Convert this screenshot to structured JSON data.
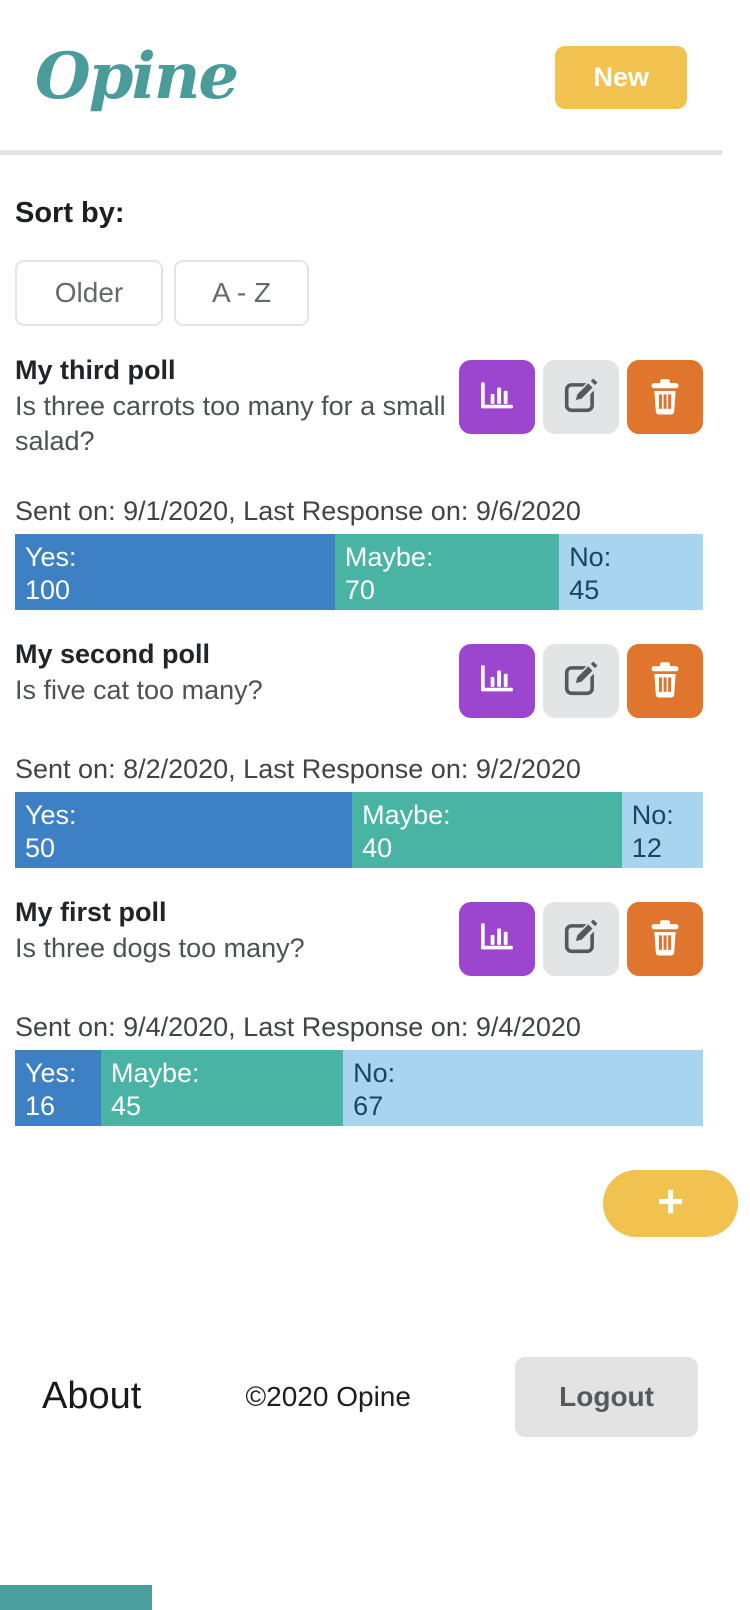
{
  "header": {
    "logo_text": "Opine",
    "new_button_label": "New"
  },
  "sort": {
    "label": "Sort by:",
    "buttons": [
      {
        "label": "Older"
      },
      {
        "label": "A - Z"
      }
    ]
  },
  "polls": [
    {
      "title": "My third poll",
      "question": "Is three carrots too many for a small salad?",
      "meta": "Sent on: 9/1/2020, Last Response on: 9/6/2020",
      "segments": [
        {
          "label": "Yes:",
          "value": "100",
          "pct": 46.5
        },
        {
          "label": "Maybe:",
          "value": "70",
          "pct": 32.6
        },
        {
          "label": "No:",
          "value": "45",
          "pct": 20.9
        }
      ]
    },
    {
      "title": "My second poll",
      "question": "Is five cat too many?",
      "meta": "Sent on: 8/2/2020, Last Response on: 9/2/2020",
      "segments": [
        {
          "label": "Yes:",
          "value": "50",
          "pct": 49.0
        },
        {
          "label": "Maybe:",
          "value": "40",
          "pct": 39.2
        },
        {
          "label": "No:",
          "value": "12",
          "pct": 11.8
        }
      ]
    },
    {
      "title": "My first poll",
      "question": "Is three dogs too many?",
      "meta": "Sent on: 9/4/2020, Last Response on: 9/4/2020",
      "segments": [
        {
          "label": "Yes:",
          "value": "16",
          "pct": 12.5
        },
        {
          "label": "Maybe:",
          "value": "45",
          "pct": 35.2
        },
        {
          "label": "No:",
          "value": "67",
          "pct": 52.3
        }
      ]
    }
  ],
  "fab": {
    "label": "+"
  },
  "footer": {
    "about_label": "About",
    "copyright": "©2020 Opine",
    "logout_label": "Logout"
  },
  "colors": {
    "brand_teal": "#4A9C9B",
    "accent_yellow": "#F1C24F",
    "chart_purple": "#9C45CE",
    "delete_orange": "#E0752D",
    "yes_blue": "#3E80C4",
    "maybe_teal": "#49B4A3",
    "no_lightblue": "#A9D4EF"
  }
}
